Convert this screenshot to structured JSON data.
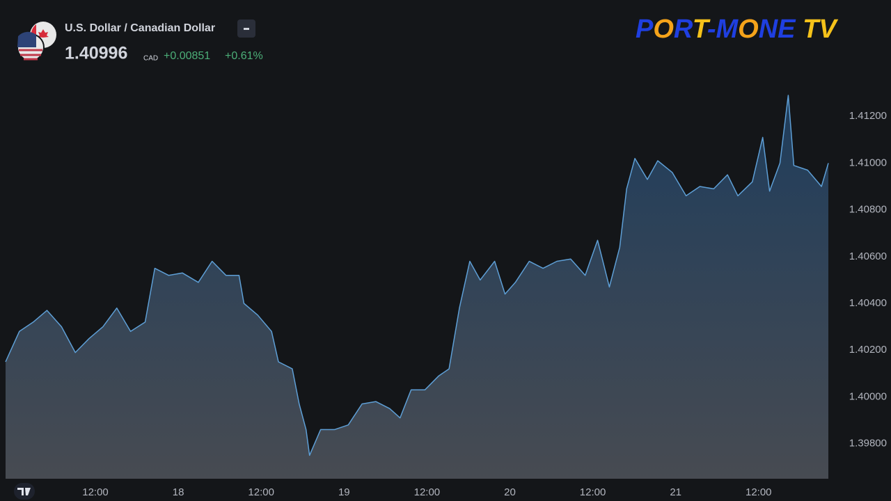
{
  "header": {
    "title": "U.S. Dollar / Canadian Dollar",
    "price": "1.40996",
    "currency": "CAD",
    "change": "+0.00851",
    "change_percent": "+0.61%"
  },
  "logo": "PORT-MONE TV",
  "chart_data": {
    "type": "area",
    "x": [
      -1.0,
      1.0,
      3.0,
      5.0,
      7.1,
      9.1,
      11.1,
      13.1,
      15.1,
      17.1,
      19.2,
      20.6,
      22.6,
      24.6,
      26.9,
      28.9,
      30.9,
      32.8,
      33.5,
      35.5,
      37.5,
      38.5,
      40.5,
      41.5,
      42.5,
      43.0,
      44.6,
      46.6,
      48.6,
      50.6,
      52.6,
      54.6,
      56.1,
      57.7,
      59.7,
      61.7,
      63.2,
      64.7,
      66.2,
      67.7,
      69.8,
      71.3,
      72.8,
      74.8,
      76.8,
      78.8,
      80.8,
      82.9,
      84.7,
      86.4,
      87.9,
      88.9,
      90.1,
      91.9,
      93.4,
      95.5,
      97.5,
      99.5,
      101.5,
      103.5,
      105.0,
      107.1,
      108.6,
      109.6,
      111.1,
      112.3,
      113.1,
      115.1,
      117.1,
      118.1
    ],
    "values": [
      1.4015,
      1.4028,
      1.4032,
      1.4037,
      1.403,
      1.4019,
      1.4025,
      1.403,
      1.4038,
      1.4028,
      1.4032,
      1.4055,
      1.4052,
      1.4053,
      1.4049,
      1.4058,
      1.4052,
      1.4052,
      1.404,
      1.4035,
      1.4028,
      1.4015,
      1.4012,
      1.3997,
      1.3986,
      1.3975,
      1.3986,
      1.3986,
      1.3988,
      1.3997,
      1.3998,
      1.3995,
      1.3991,
      1.4003,
      1.4003,
      1.4009,
      1.4012,
      1.4038,
      1.4058,
      1.405,
      1.4058,
      1.4044,
      1.4049,
      1.4058,
      1.4055,
      1.4058,
      1.4059,
      1.4052,
      1.4067,
      1.4047,
      1.4064,
      1.4089,
      1.4102,
      1.4093,
      1.4101,
      1.4096,
      1.4086,
      1.409,
      1.4089,
      1.4095,
      1.4086,
      1.4092,
      1.4111,
      1.4088,
      1.41,
      1.4129,
      1.4099,
      1.4097,
      1.409,
      1.41
    ],
    "color": "#5e9fd6",
    "xlim": [
      -1.0,
      118.1
    ],
    "ylim": [
      1.3965,
      1.414
    ],
    "xticks": [
      {
        "value": 12,
        "label": "12:00"
      },
      {
        "value": 24,
        "label": "18"
      },
      {
        "value": 36,
        "label": "12:00"
      },
      {
        "value": 48,
        "label": "19"
      },
      {
        "value": 60,
        "label": "12:00"
      },
      {
        "value": 72,
        "label": "20"
      },
      {
        "value": 84,
        "label": "12:00"
      },
      {
        "value": 96,
        "label": "21"
      },
      {
        "value": 108,
        "label": "12:00"
      }
    ],
    "yticks": [
      {
        "value": 1.398,
        "label": "1.39800"
      },
      {
        "value": 1.4,
        "label": "1.40000"
      },
      {
        "value": 1.402,
        "label": "1.40200"
      },
      {
        "value": 1.404,
        "label": "1.40400"
      },
      {
        "value": 1.406,
        "label": "1.40600"
      },
      {
        "value": 1.408,
        "label": "1.40800"
      },
      {
        "value": 1.41,
        "label": "1.41000"
      },
      {
        "value": 1.412,
        "label": "1.41200"
      }
    ]
  }
}
